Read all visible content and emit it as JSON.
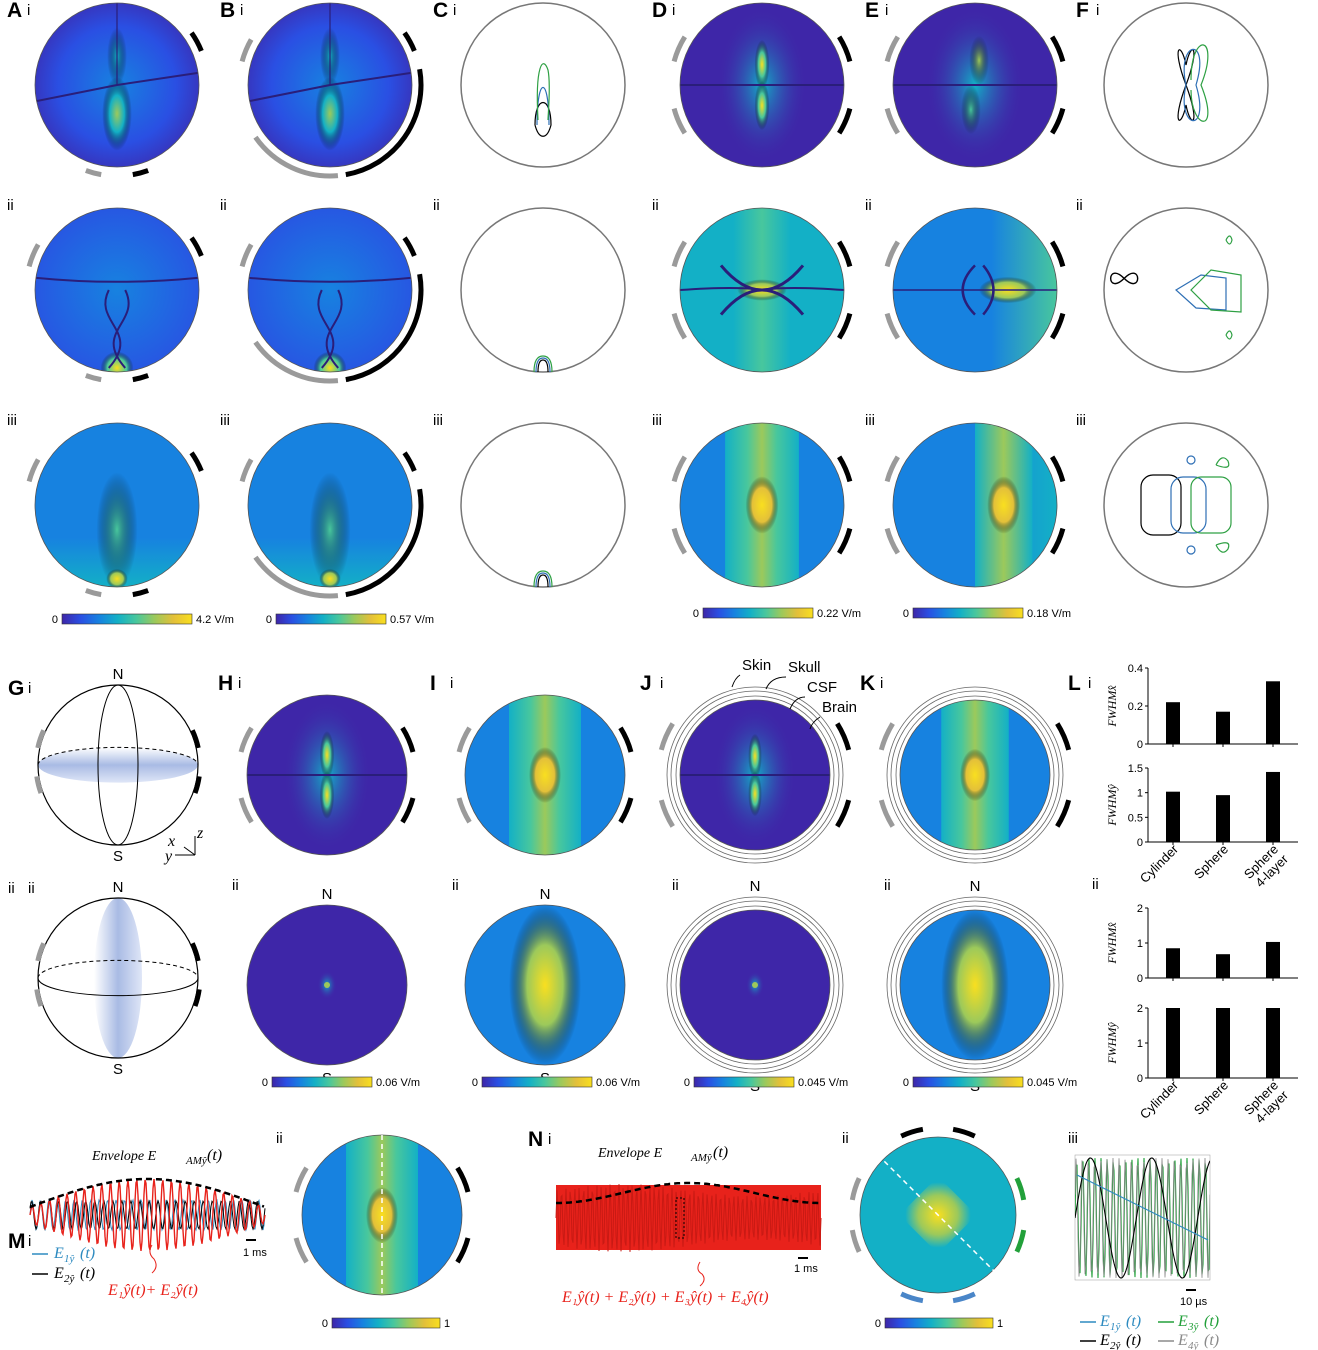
{
  "panel_letters": [
    "A",
    "B",
    "C",
    "D",
    "E",
    "F",
    "G",
    "H",
    "I",
    "J",
    "K",
    "L",
    "M",
    "N"
  ],
  "roman": [
    "i",
    "ii",
    "iii"
  ],
  "colormap": [
    "#3e26a8",
    "#2a4fe3",
    "#1782e0",
    "#13b0c6",
    "#48c79d",
    "#9cc95b",
    "#e3c03a",
    "#f9df1f"
  ],
  "electrode_colors": {
    "gray": "#9a9a9a",
    "black": "#000000",
    "green": "#22a03a",
    "blue": "#4a86c8"
  },
  "contour_colors": {
    "black": "#000000",
    "blue": "#2e6fb5",
    "green": "#2ea043"
  },
  "colorbars": {
    "A": {
      "min": "0",
      "max": "4.2 V/m"
    },
    "B": {
      "min": "0",
      "max": "0.57 V/m"
    },
    "D": {
      "min": "0",
      "max": "0.22 V/m"
    },
    "E": {
      "min": "0",
      "max": "0.18 V/m"
    },
    "H": {
      "min": "0",
      "max": "0.06 V/m"
    },
    "I": {
      "min": "0",
      "max": "0.06 V/m"
    },
    "J": {
      "min": "0",
      "max": "0.045 V/m"
    },
    "K": {
      "min": "0",
      "max": "0.045 V/m"
    },
    "M": {
      "min": "0",
      "max": "1"
    },
    "N": {
      "min": "0",
      "max": "1"
    }
  },
  "poles": {
    "north": "N",
    "south": "S"
  },
  "axes_triad": {
    "x": "x",
    "y": "y",
    "z": "z"
  },
  "layers": {
    "skin": "Skin",
    "skull": "Skull",
    "csf": "CSF",
    "brain": "Brain"
  },
  "M": {
    "envelope": "Envelope E",
    "envelope_sub": "AMŷ",
    "envelope_arg": "(t)",
    "scale": "1 ms",
    "legend": [
      {
        "text": "E",
        "sub": "1ŷ",
        "arg": "(t)",
        "color": "#2e8bc0"
      },
      {
        "text": "E",
        "sub": "2ŷ",
        "arg": "(t)",
        "color": "#000000"
      }
    ],
    "sum_label": "E₁ŷ(t)+ E₂ŷ(t)"
  },
  "N": {
    "envelope": "Envelope E",
    "envelope_sub": "AMŷ",
    "envelope_arg": "(t)",
    "scale": "1 ms",
    "sum_label": "E₁ŷ(t) + E₂ŷ(t) + E₃ŷ(t) + E₄ŷ(t)",
    "scale_iii": "10 µs",
    "legend": [
      {
        "text": "E",
        "sub": "1ŷ",
        "arg": "(t)",
        "color": "#2e8bc0"
      },
      {
        "text": "E",
        "sub": "3ŷ",
        "arg": "(t)",
        "color": "#22a03a"
      },
      {
        "text": "E",
        "sub": "2ŷ",
        "arg": "(t)",
        "color": "#000000"
      },
      {
        "text": "E",
        "sub": "4ŷ",
        "arg": "(t)",
        "color": "#8a8a8a"
      }
    ]
  },
  "chart_data": [
    {
      "type": "bar",
      "panel": "L i (top)",
      "categories": [
        "Cylinder",
        "Sphere",
        "Sphere 4-layer"
      ],
      "values": [
        0.22,
        0.17,
        0.33
      ],
      "ylabel": "FWHMx̂",
      "ylim": [
        0,
        0.4
      ],
      "yticks": [
        "0",
        "0.2",
        "0.4"
      ]
    },
    {
      "type": "bar",
      "panel": "L i (bottom)",
      "categories": [
        "Cylinder",
        "Sphere",
        "Sphere 4-layer"
      ],
      "values": [
        1.02,
        0.95,
        1.42
      ],
      "ylabel": "FWHMŷ",
      "ylim": [
        0,
        1.5
      ],
      "yticks": [
        "0",
        "0.5",
        "1",
        "1.5"
      ]
    },
    {
      "type": "bar",
      "panel": "L ii (top)",
      "categories": [
        "Cylinder",
        "Sphere",
        "Sphere 4-layer"
      ],
      "values": [
        0.85,
        0.68,
        1.03
      ],
      "ylabel": "FWHMx̂",
      "ylim": [
        0,
        2
      ],
      "yticks": [
        "0",
        "1",
        "2"
      ]
    },
    {
      "type": "bar",
      "panel": "L ii (bottom)",
      "categories": [
        "Cylinder",
        "Sphere",
        "Sphere 4-layer"
      ],
      "values": [
        2.0,
        2.0,
        2.0
      ],
      "ylabel": "FWHMŷ",
      "ylim": [
        0,
        2
      ],
      "yticks": [
        "0",
        "1",
        "2"
      ]
    }
  ]
}
